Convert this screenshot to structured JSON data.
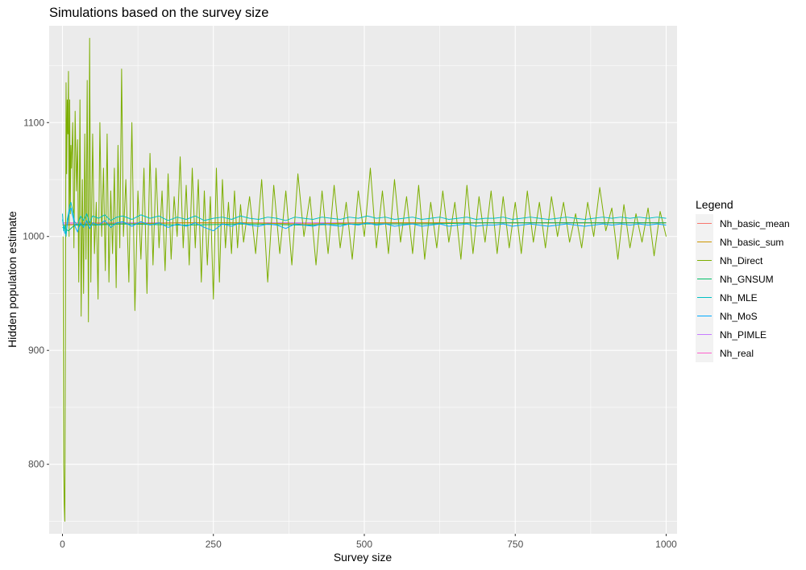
{
  "chart_data": {
    "type": "line",
    "title": "Simulations based on the survey size",
    "xlabel": "Survey size",
    "ylabel": "Hidden population estimate",
    "xlim": [
      -22,
      1018
    ],
    "ylim": [
      739,
      1185
    ],
    "x_ticks": [
      0,
      250,
      500,
      750,
      1000
    ],
    "y_ticks": [
      800,
      900,
      1000,
      1100
    ],
    "x_tick_labels": [
      "0",
      "250",
      "500",
      "750",
      "1000"
    ],
    "y_tick_labels": [
      "800",
      "900",
      "1000",
      "1100"
    ],
    "grid": true,
    "background": "#ebebeb",
    "legend": {
      "title": "Legend",
      "position": "right",
      "entries": [
        "Nh_basic_mean",
        "Nh_basic_sum",
        "Nh_Direct",
        "Nh_GNSUM",
        "Nh_MLE",
        "Nh_MoS",
        "Nh_PIMLE",
        "Nh_real"
      ]
    },
    "series": [
      {
        "name": "Nh_basic_mean",
        "color": "#f8766d",
        "x": [
          0,
          50,
          100,
          200,
          300,
          400,
          500,
          600,
          700,
          800,
          900,
          1000
        ],
        "y": [
          1010,
          1011,
          1011,
          1012,
          1012,
          1011,
          1012,
          1012,
          1012,
          1012,
          1012,
          1012
        ]
      },
      {
        "name": "Nh_basic_sum",
        "color": "#cd9600",
        "x": [
          0,
          50,
          100,
          200,
          300,
          400,
          500,
          600,
          700,
          800,
          900,
          1000
        ],
        "y": [
          1010,
          1011,
          1011,
          1012,
          1012,
          1011,
          1012,
          1012,
          1012,
          1012,
          1012,
          1012
        ]
      },
      {
        "name": "Nh_Direct",
        "color": "#7cae00",
        "x": [
          1,
          2,
          3,
          4,
          5,
          6,
          7,
          8,
          9,
          10,
          11,
          12,
          13,
          14,
          15,
          17,
          19,
          21,
          23,
          25,
          27,
          29,
          31,
          33,
          35,
          37,
          39,
          41,
          43,
          45,
          47,
          50,
          53,
          56,
          59,
          62,
          65,
          68,
          71,
          74,
          77,
          80,
          83,
          86,
          89,
          92,
          95,
          98,
          101,
          105,
          110,
          115,
          120,
          125,
          130,
          135,
          140,
          145,
          150,
          155,
          160,
          165,
          170,
          175,
          180,
          185,
          190,
          195,
          200,
          205,
          210,
          215,
          220,
          225,
          230,
          235,
          240,
          245,
          250,
          255,
          260,
          265,
          270,
          275,
          280,
          285,
          290,
          295,
          300,
          310,
          320,
          330,
          340,
          350,
          360,
          370,
          380,
          390,
          400,
          410,
          420,
          430,
          440,
          450,
          460,
          470,
          480,
          490,
          500,
          510,
          520,
          530,
          540,
          550,
          560,
          570,
          580,
          590,
          600,
          610,
          620,
          630,
          640,
          650,
          660,
          670,
          680,
          690,
          700,
          710,
          720,
          730,
          740,
          750,
          760,
          770,
          780,
          790,
          800,
          810,
          820,
          830,
          840,
          850,
          860,
          870,
          880,
          890,
          900,
          910,
          920,
          930,
          940,
          950,
          960,
          970,
          980,
          990,
          1000
        ],
        "y": [
          1000,
          800,
          765,
          750,
          940,
          1135,
          1055,
          1120,
          1090,
          1145,
          1000,
          1120,
          1020,
          1080,
          1060,
          1100,
          990,
          1110,
          1040,
          1085,
          960,
          1120,
          930,
          1050,
          950,
          1090,
          980,
          1137,
          925,
          1174,
          960,
          1090,
          985,
          1030,
          945,
          1100,
          1000,
          1060,
          970,
          1090,
          960,
          1040,
          985,
          1060,
          955,
          1080,
          990,
          1147,
          1000,
          1050,
          960,
          1100,
          935,
          1040,
          980,
          1060,
          950,
          1073,
          975,
          1060,
          990,
          1040,
          970,
          1055,
          980,
          1035,
          1000,
          1070,
          990,
          1045,
          975,
          1060,
          990,
          1050,
          960,
          1040,
          975,
          1035,
          945,
          1060,
          960,
          1050,
          990,
          1030,
          985,
          1040,
          990,
          1028,
          995,
          1035,
          985,
          1050,
          960,
          1045,
          985,
          1040,
          975,
          1055,
          1000,
          1035,
          975,
          1040,
          985,
          1045,
          990,
          1030,
          980,
          1040,
          1000,
          1060,
          990,
          1040,
          985,
          1050,
          995,
          1035,
          985,
          1045,
          980,
          1030,
          990,
          1040,
          995,
          1030,
          980,
          1045,
          985,
          1035,
          995,
          1040,
          985,
          1035,
          990,
          1030,
          985,
          1040,
          995,
          1030,
          990,
          1035,
          1000,
          1030,
          995,
          1020,
          990,
          1030,
          1000,
          1043,
          1005,
          1025,
          980,
          1028,
          990,
          1020,
          995,
          1025,
          983,
          1022,
          1000
        ]
      },
      {
        "name": "Nh_GNSUM",
        "color": "#00be67",
        "x": [
          0,
          10,
          20,
          50,
          100,
          200,
          300,
          400,
          500,
          600,
          700,
          800,
          900,
          1000
        ],
        "y": [
          1008,
          1005,
          1010,
          1010,
          1011,
          1010,
          1011,
          1010,
          1011,
          1011,
          1012,
          1012,
          1012,
          1012
        ]
      },
      {
        "name": "Nh_MLE",
        "color": "#00bfc4",
        "x": [
          0,
          2,
          4,
          6,
          8,
          10,
          12,
          14,
          16,
          18,
          20,
          25,
          30,
          35,
          40,
          45,
          50,
          60,
          70,
          80,
          90,
          100,
          115,
          130,
          145,
          160,
          175,
          190,
          205,
          220,
          235,
          250,
          265,
          280,
          295,
          310,
          325,
          340,
          355,
          370,
          385,
          400,
          415,
          430,
          445,
          460,
          475,
          490,
          505,
          520,
          535,
          550,
          565,
          580,
          595,
          610,
          625,
          640,
          655,
          670,
          685,
          700,
          715,
          730,
          745,
          760,
          775,
          790,
          805,
          820,
          835,
          850,
          865,
          880,
          895,
          910,
          925,
          940,
          955,
          970,
          985,
          1000
        ],
        "y": [
          1020,
          1005,
          1010,
          1000,
          1015,
          1020,
          1027,
          1030,
          1025,
          1020,
          1013,
          1010,
          1018,
          1014,
          1020,
          1012,
          1018,
          1016,
          1019,
          1014,
          1017,
          1018,
          1015,
          1019,
          1016,
          1018,
          1014,
          1017,
          1015,
          1018,
          1014,
          1016,
          1017,
          1015,
          1018,
          1016,
          1015,
          1017,
          1016,
          1014,
          1017,
          1016,
          1015,
          1017,
          1016,
          1015,
          1017,
          1016,
          1018,
          1016,
          1017,
          1015,
          1016,
          1017,
          1015,
          1016,
          1017,
          1015,
          1016,
          1017,
          1015,
          1016,
          1016,
          1017,
          1015,
          1016,
          1017,
          1016,
          1015,
          1016,
          1017,
          1016,
          1015,
          1016,
          1017,
          1016,
          1017,
          1016,
          1017,
          1016,
          1017,
          1016
        ]
      },
      {
        "name": "Nh_MoS",
        "color": "#00a9ff",
        "x": [
          0,
          2,
          4,
          6,
          8,
          10,
          12,
          14,
          16,
          18,
          20,
          25,
          30,
          35,
          40,
          45,
          50,
          60,
          70,
          80,
          90,
          100,
          115,
          130,
          145,
          160,
          175,
          190,
          205,
          220,
          235,
          250,
          265,
          280,
          295,
          310,
          325,
          340,
          355,
          370,
          385,
          400,
          415,
          430,
          445,
          460,
          475,
          490,
          505,
          520,
          535,
          550,
          565,
          580,
          595,
          610,
          625,
          640,
          655,
          670,
          685,
          700,
          715,
          730,
          745,
          760,
          775,
          790,
          805,
          820,
          835,
          850,
          865,
          880,
          895,
          910,
          925,
          940,
          955,
          970,
          985,
          1000
        ],
        "y": [
          1015,
          1008,
          1003,
          1002,
          1010,
          1018,
          1023,
          1025,
          1020,
          1016,
          1010,
          1004,
          1012,
          1008,
          1014,
          1007,
          1012,
          1010,
          1014,
          1008,
          1012,
          1013,
          1009,
          1013,
          1010,
          1012,
          1008,
          1011,
          1009,
          1012,
          1008,
          1005,
          1011,
          1009,
          1012,
          1010,
          1009,
          1011,
          1010,
          1007,
          1011,
          1010,
          1009,
          1011,
          1010,
          1009,
          1011,
          1010,
          1012,
          1010,
          1011,
          1009,
          1010,
          1011,
          1009,
          1010,
          1011,
          1009,
          1010,
          1011,
          1009,
          1010,
          1010,
          1011,
          1009,
          1010,
          1011,
          1010,
          1009,
          1010,
          1011,
          1010,
          1009,
          1010,
          1011,
          1010,
          1011,
          1010,
          1011,
          1010,
          1011,
          1010
        ]
      },
      {
        "name": "Nh_PIMLE",
        "color": "#c77cff",
        "x": [
          0,
          50,
          100,
          200,
          300,
          400,
          500,
          600,
          700,
          800,
          900,
          1000
        ],
        "y": [
          1011,
          1011,
          1012,
          1012,
          1012,
          1012,
          1012,
          1012,
          1012,
          1012,
          1012,
          1012
        ]
      },
      {
        "name": "Nh_real",
        "color": "#ff61cc",
        "x": [
          0,
          1000
        ],
        "y": [
          1012,
          1012
        ]
      }
    ]
  }
}
